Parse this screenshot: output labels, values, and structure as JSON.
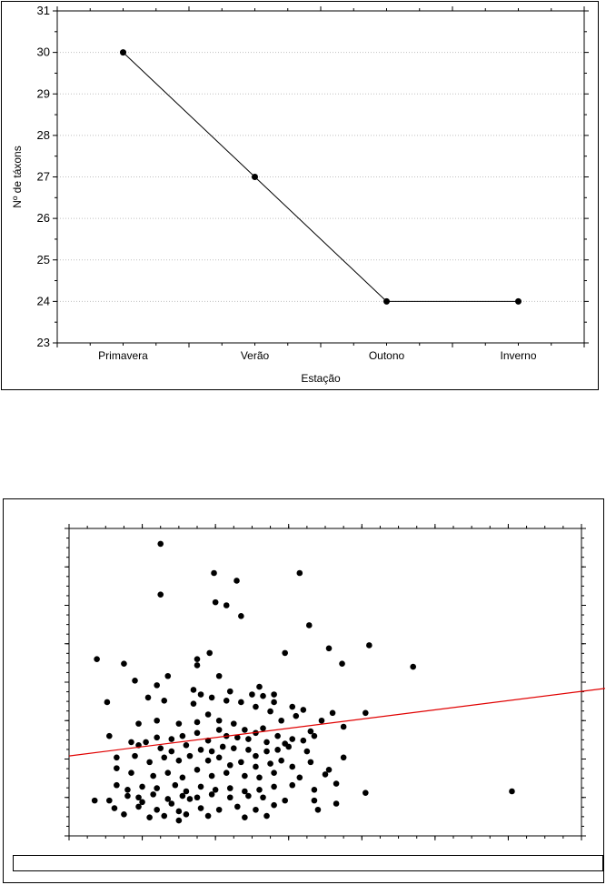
{
  "chart_data": [
    {
      "type": "line",
      "xlabel": "Estação",
      "ylabel": "Nº de táxons",
      "categories": [
        "Primavera",
        "Verão",
        "Outono",
        "Inverno"
      ],
      "values": [
        30,
        27,
        24,
        24
      ],
      "ylim": [
        23,
        31
      ],
      "yticks": [
        23,
        24,
        25,
        26,
        27,
        28,
        29,
        30,
        31
      ],
      "grid": "horizontal dotted",
      "colors": {
        "line": "#000000",
        "marker": "#000000",
        "grid": "#c0c0c0"
      }
    },
    {
      "type": "scatter",
      "xlim": [
        0,
        7
      ],
      "ylim": [
        0,
        10
      ],
      "tick_labels_visible": false,
      "trendline": {
        "x": [
          0,
          7
        ],
        "y": [
          2.6,
          4.7
        ],
        "color": "#e00000"
      },
      "points": [
        [
          1.25,
          9.5
        ],
        [
          1.98,
          8.55
        ],
        [
          2.29,
          8.3
        ],
        [
          3.15,
          8.55
        ],
        [
          1.25,
          7.85
        ],
        [
          2.0,
          7.6
        ],
        [
          2.15,
          7.5
        ],
        [
          2.35,
          7.15
        ],
        [
          3.28,
          6.85
        ],
        [
          3.55,
          6.1
        ],
        [
          4.1,
          6.2
        ],
        [
          1.92,
          5.95
        ],
        [
          1.75,
          5.75
        ],
        [
          1.75,
          5.55
        ],
        [
          0.38,
          5.75
        ],
        [
          0.75,
          5.6
        ],
        [
          1.35,
          5.2
        ],
        [
          0.9,
          5.05
        ],
        [
          2.95,
          5.95
        ],
        [
          3.73,
          5.6
        ],
        [
          4.7,
          5.5
        ],
        [
          2.05,
          5.2
        ],
        [
          1.2,
          4.9
        ],
        [
          1.7,
          4.75
        ],
        [
          2.2,
          4.7
        ],
        [
          2.6,
          4.85
        ],
        [
          2.8,
          4.6
        ],
        [
          2.65,
          4.55
        ],
        [
          0.52,
          4.35
        ],
        [
          1.08,
          4.5
        ],
        [
          1.3,
          4.4
        ],
        [
          1.7,
          4.3
        ],
        [
          1.8,
          4.6
        ],
        [
          1.95,
          4.5
        ],
        [
          2.15,
          4.4
        ],
        [
          2.35,
          4.35
        ],
        [
          2.5,
          4.6
        ],
        [
          2.8,
          4.35
        ],
        [
          3.05,
          4.2
        ],
        [
          2.55,
          4.2
        ],
        [
          2.75,
          4.05
        ],
        [
          3.2,
          4.1
        ],
        [
          3.6,
          4.0
        ],
        [
          4.05,
          4.0
        ],
        [
          0.95,
          3.65
        ],
        [
          1.2,
          3.75
        ],
        [
          1.5,
          3.65
        ],
        [
          1.75,
          3.7
        ],
        [
          1.9,
          3.95
        ],
        [
          2.05,
          3.75
        ],
        [
          2.25,
          3.65
        ],
        [
          2.4,
          3.45
        ],
        [
          2.65,
          3.5
        ],
        [
          2.9,
          3.75
        ],
        [
          3.1,
          3.9
        ],
        [
          3.3,
          3.4
        ],
        [
          3.45,
          3.75
        ],
        [
          3.75,
          3.55
        ],
        [
          0.55,
          3.25
        ],
        [
          0.85,
          3.05
        ],
        [
          1.2,
          3.2
        ],
        [
          1.4,
          3.15
        ],
        [
          1.55,
          3.25
        ],
        [
          1.75,
          3.35
        ],
        [
          1.9,
          3.1
        ],
        [
          2.05,
          3.45
        ],
        [
          2.15,
          3.25
        ],
        [
          2.3,
          3.2
        ],
        [
          2.45,
          3.15
        ],
        [
          2.55,
          3.35
        ],
        [
          2.7,
          3.05
        ],
        [
          2.85,
          3.25
        ],
        [
          2.95,
          3.0
        ],
        [
          3.05,
          3.15
        ],
        [
          3.2,
          3.1
        ],
        [
          3.35,
          3.25
        ],
        [
          0.95,
          2.95
        ],
        [
          1.05,
          3.05
        ],
        [
          1.25,
          2.85
        ],
        [
          1.4,
          2.75
        ],
        [
          1.6,
          2.95
        ],
        [
          1.8,
          2.8
        ],
        [
          1.95,
          2.75
        ],
        [
          2.1,
          2.9
        ],
        [
          2.25,
          2.85
        ],
        [
          2.45,
          2.8
        ],
        [
          2.55,
          2.6
        ],
        [
          2.7,
          2.75
        ],
        [
          2.85,
          2.8
        ],
        [
          3.0,
          2.9
        ],
        [
          3.25,
          2.75
        ],
        [
          3.75,
          2.55
        ],
        [
          0.65,
          2.55
        ],
        [
          0.9,
          2.6
        ],
        [
          1.1,
          2.4
        ],
        [
          1.3,
          2.55
        ],
        [
          1.5,
          2.45
        ],
        [
          1.65,
          2.6
        ],
        [
          1.9,
          2.45
        ],
        [
          2.05,
          2.55
        ],
        [
          2.2,
          2.3
        ],
        [
          2.35,
          2.4
        ],
        [
          2.55,
          2.25
        ],
        [
          2.75,
          2.35
        ],
        [
          2.9,
          2.45
        ],
        [
          3.05,
          2.25
        ],
        [
          3.3,
          2.4
        ],
        [
          3.55,
          2.15
        ],
        [
          0.65,
          2.2
        ],
        [
          0.85,
          2.05
        ],
        [
          1.15,
          1.95
        ],
        [
          1.35,
          2.05
        ],
        [
          1.55,
          1.9
        ],
        [
          1.75,
          2.15
        ],
        [
          1.95,
          1.95
        ],
        [
          2.15,
          2.05
        ],
        [
          2.4,
          1.95
        ],
        [
          2.6,
          1.9
        ],
        [
          2.8,
          2.05
        ],
        [
          3.15,
          1.9
        ],
        [
          3.5,
          2.0
        ],
        [
          3.65,
          1.7
        ],
        [
          0.65,
          1.65
        ],
        [
          0.8,
          1.5
        ],
        [
          1.0,
          1.6
        ],
        [
          1.2,
          1.55
        ],
        [
          1.45,
          1.65
        ],
        [
          1.6,
          1.45
        ],
        [
          1.8,
          1.6
        ],
        [
          2.0,
          1.5
        ],
        [
          2.2,
          1.55
        ],
        [
          2.4,
          1.45
        ],
        [
          2.6,
          1.5
        ],
        [
          2.8,
          1.6
        ],
        [
          3.05,
          1.65
        ],
        [
          3.35,
          1.5
        ],
        [
          0.8,
          1.3
        ],
        [
          0.95,
          1.25
        ],
        [
          1.15,
          1.35
        ],
        [
          1.35,
          1.2
        ],
        [
          1.55,
          1.3
        ],
        [
          1.75,
          1.25
        ],
        [
          1.95,
          1.35
        ],
        [
          2.2,
          1.25
        ],
        [
          2.45,
          1.3
        ],
        [
          2.65,
          1.25
        ],
        [
          0.62,
          0.9
        ],
        [
          0.95,
          0.95
        ],
        [
          1.2,
          0.85
        ],
        [
          1.5,
          0.8
        ],
        [
          1.8,
          0.9
        ],
        [
          2.05,
          0.85
        ],
        [
          2.3,
          0.95
        ],
        [
          2.55,
          0.85
        ],
        [
          2.8,
          1.0
        ],
        [
          3.4,
          0.85
        ],
        [
          1.1,
          0.6
        ],
        [
          1.3,
          0.65
        ],
        [
          1.5,
          0.5
        ],
        [
          0.75,
          0.7
        ],
        [
          1.6,
          0.7
        ],
        [
          1.9,
          0.65
        ],
        [
          2.4,
          0.6
        ],
        [
          2.7,
          0.65
        ],
        [
          3.35,
          1.15
        ],
        [
          1.4,
          1.05
        ],
        [
          4.05,
          1.4
        ],
        [
          6.05,
          1.45
        ],
        [
          0.55,
          1.15
        ],
        [
          1.0,
          1.1
        ],
        [
          2.95,
          1.15
        ],
        [
          3.65,
          1.05
        ],
        [
          0.35,
          1.15
        ],
        [
          1.65,
          1.2
        ]
      ],
      "colors": {
        "point": "#000000"
      }
    }
  ]
}
